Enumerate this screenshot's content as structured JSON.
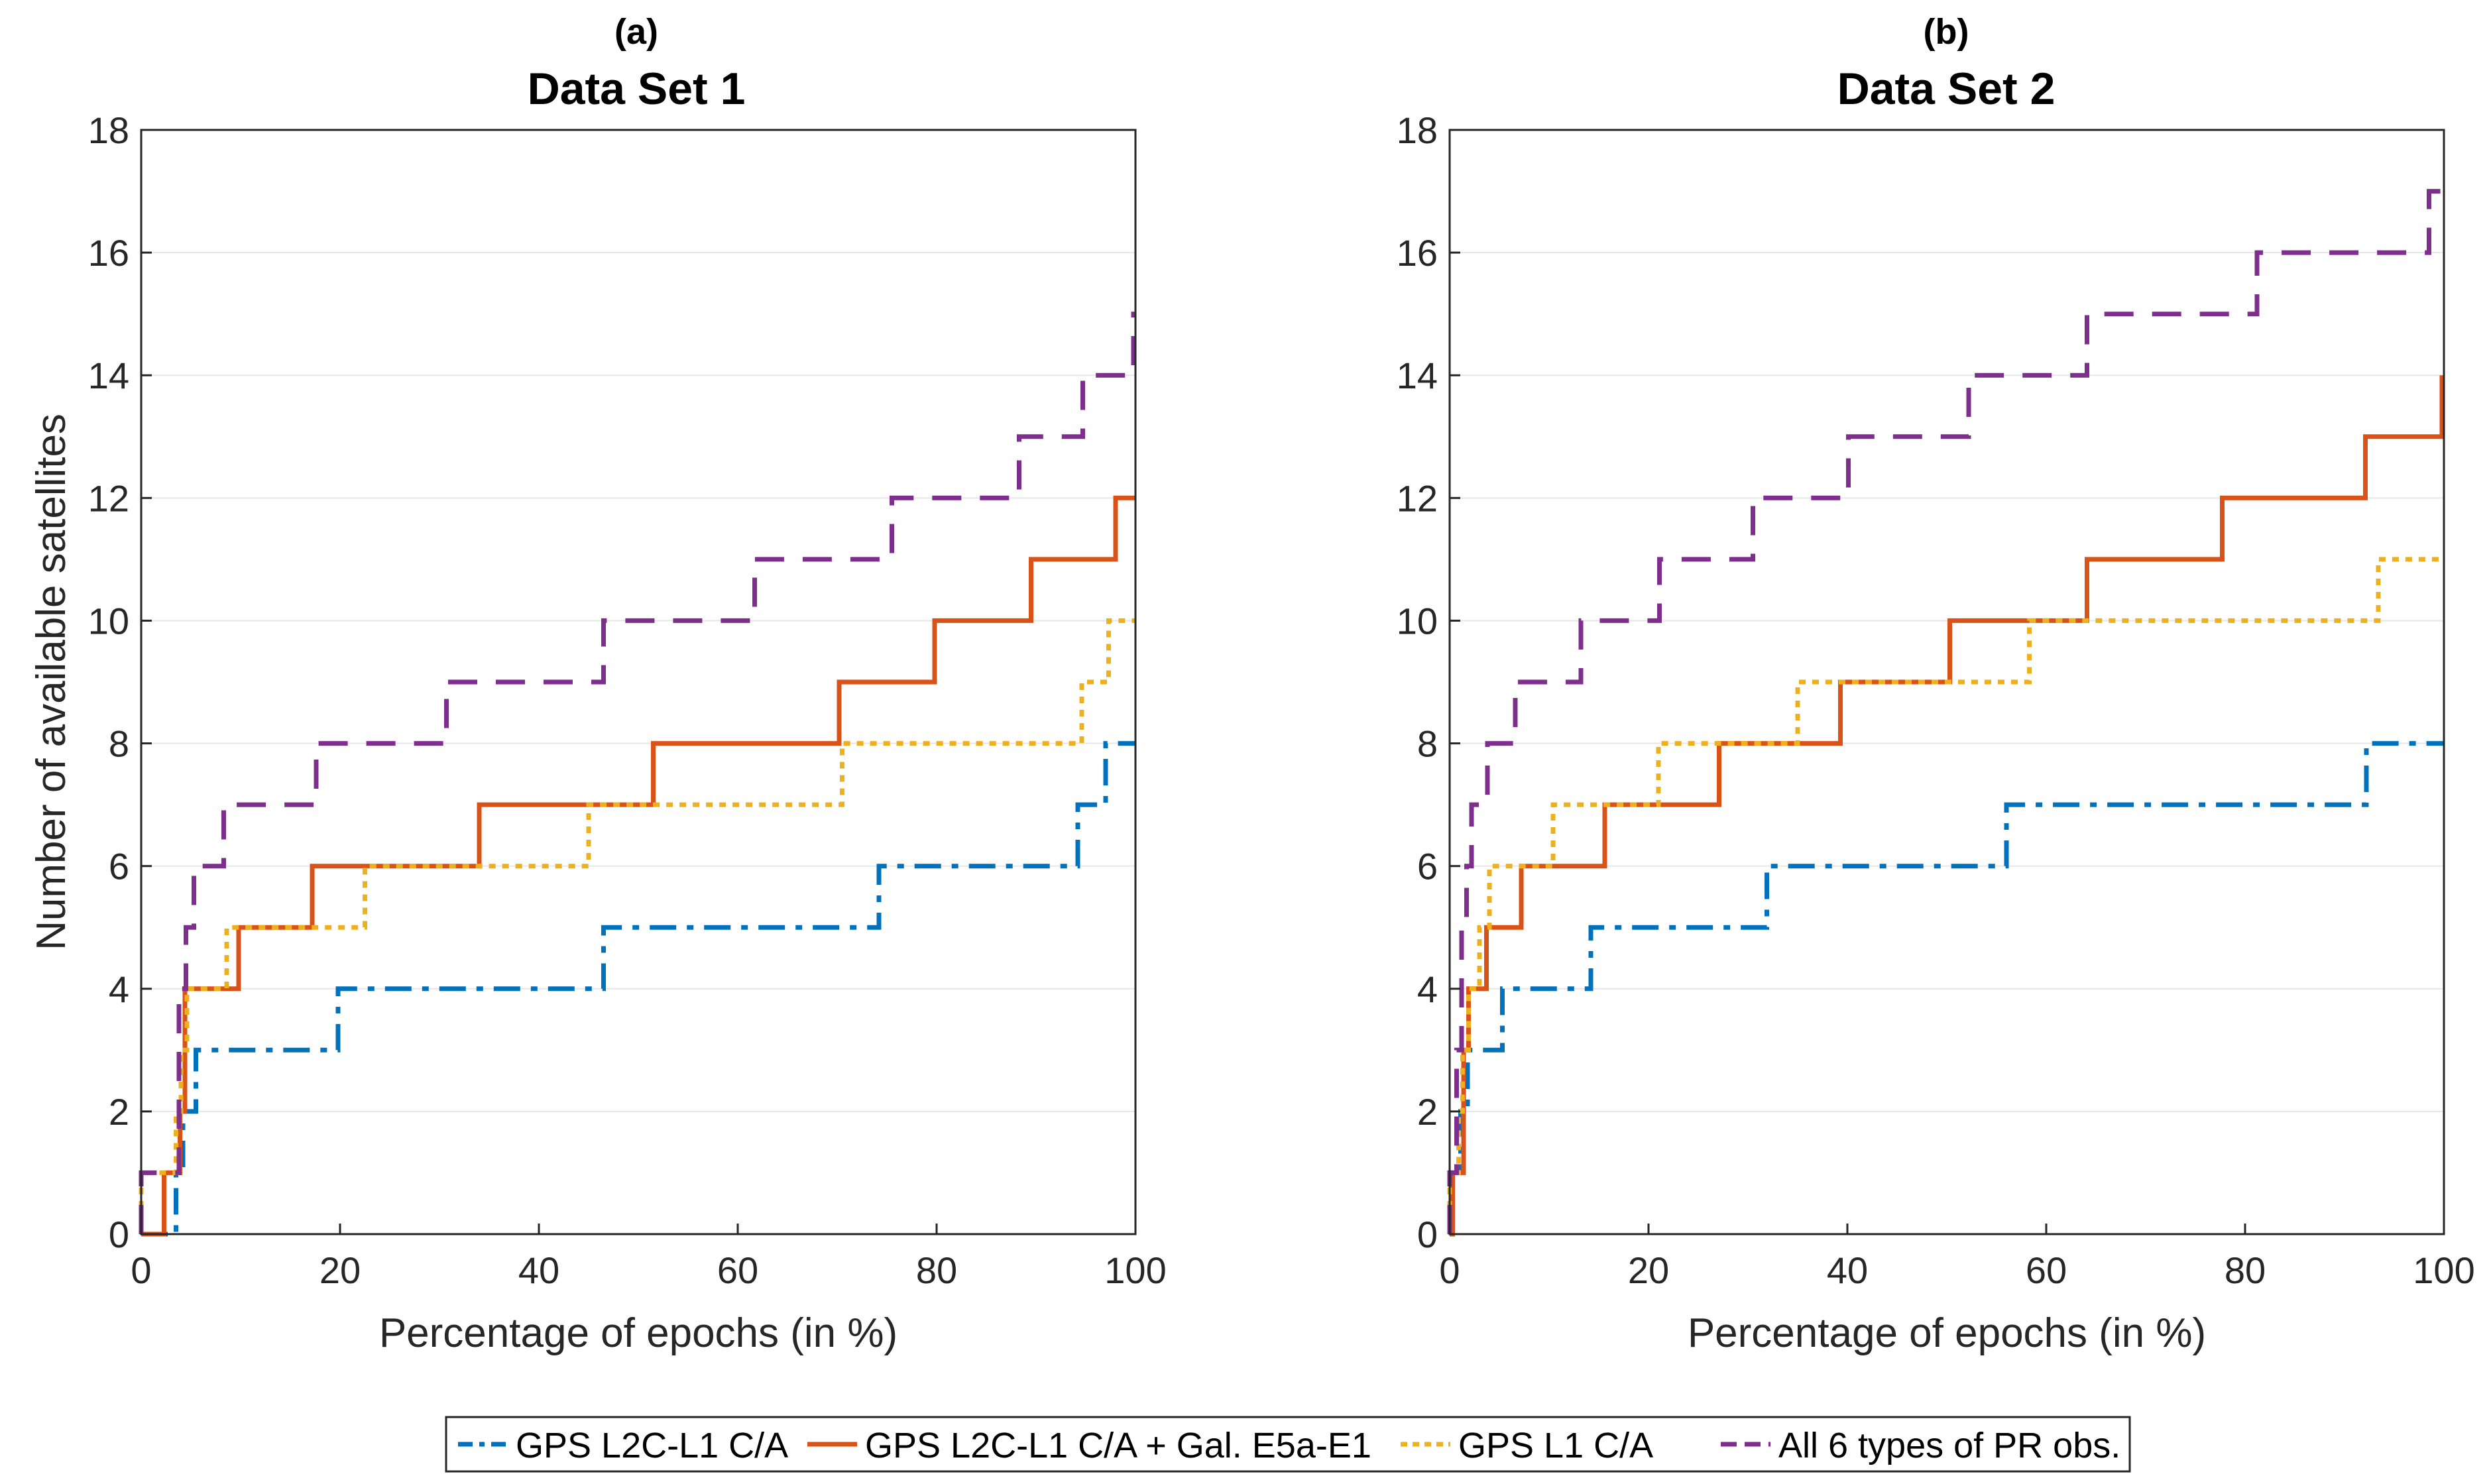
{
  "figure": {
    "ylabel": "Number of available satellites",
    "legend": {
      "placement": "bottom-center",
      "entries": [
        {
          "label": "GPS L2C-L1 C/A",
          "color": "#0072BD",
          "style": "dashdot"
        },
        {
          "label": "GPS L2C-L1 C/A + Gal. E5a-E1",
          "color": "#D95319",
          "style": "solid"
        },
        {
          "label": "GPS L1 C/A",
          "color": "#EDB120",
          "style": "dotted"
        },
        {
          "label": "All 6 types of PR obs.",
          "color": "#7E2F8E",
          "style": "dashed"
        }
      ]
    }
  },
  "chart_data": [
    {
      "type": "line",
      "panel_label": "(a)",
      "title": "Data Set 1",
      "xlabel": "Percentage of epochs (in %)",
      "ylabel": "Number of available satellites",
      "xlim": [
        0,
        100
      ],
      "ylim": [
        0,
        18
      ],
      "xticks": [
        0,
        20,
        40,
        60,
        80,
        100
      ],
      "yticks": [
        0,
        2,
        4,
        6,
        8,
        10,
        12,
        14,
        16,
        18
      ],
      "grid": "horizontal",
      "series": [
        {
          "name": "GPS L2C-L1 C/A",
          "color": "#0072BD",
          "style": "dashdot",
          "x": [
            0,
            3.5,
            3.5,
            4.2,
            4.2,
            5.5,
            5.5,
            19.8,
            19.8,
            46.5,
            46.5,
            74.2,
            74.2,
            94.2,
            94.2,
            97,
            97,
            100
          ],
          "y": [
            0,
            0,
            1,
            1,
            2,
            2,
            3,
            3,
            4,
            4,
            5,
            5,
            6,
            6,
            7,
            7,
            8,
            8
          ]
        },
        {
          "name": "GPS L2C-L1 C/A + Gal. E5a-E1",
          "color": "#D95319",
          "style": "solid",
          "x": [
            0,
            2.3,
            2.3,
            3.9,
            3.9,
            4.4,
            4.4,
            9.8,
            9.8,
            17.2,
            17.2,
            34,
            34,
            51.5,
            51.5,
            70.2,
            70.2,
            79.8,
            79.8,
            89.5,
            89.5,
            98,
            98,
            100
          ],
          "y": [
            0,
            0,
            1,
            1,
            2,
            2,
            4,
            4,
            5,
            5,
            6,
            6,
            7,
            7,
            8,
            8,
            9,
            9,
            10,
            10,
            11,
            11,
            12,
            12
          ]
        },
        {
          "name": "GPS L1 C/A",
          "color": "#EDB120",
          "style": "dotted",
          "x": [
            0,
            0,
            3.5,
            3.5,
            4,
            4,
            4.6,
            4.6,
            8.6,
            8.6,
            22.5,
            22.5,
            45,
            45,
            70.5,
            70.5,
            94.6,
            94.6,
            97.3,
            97.3,
            100
          ],
          "y": [
            0,
            1,
            1,
            2,
            2,
            3,
            3,
            4,
            4,
            5,
            5,
            6,
            6,
            7,
            7,
            8,
            8,
            9,
            9,
            10,
            10
          ]
        },
        {
          "name": "All 6 types of PR obs.",
          "color": "#7E2F8E",
          "style": "dashed",
          "x": [
            0,
            0,
            3.8,
            3.8,
            4.5,
            4.5,
            5.3,
            5.3,
            8.3,
            8.3,
            17.6,
            17.6,
            30.7,
            30.7,
            46.5,
            46.5,
            61.7,
            61.7,
            75.5,
            75.5,
            88.3,
            88.3,
            94.7,
            94.7,
            99.8,
            99.8,
            100
          ],
          "y": [
            0,
            1,
            1,
            4,
            4,
            5,
            5,
            6,
            6,
            7,
            7,
            8,
            8,
            9,
            9,
            10,
            10,
            11,
            11,
            12,
            12,
            13,
            13,
            14,
            14,
            15,
            15
          ]
        }
      ]
    },
    {
      "type": "line",
      "panel_label": "(b)",
      "title": "Data Set 2",
      "xlabel": "Percentage of epochs (in %)",
      "ylabel": "",
      "xlim": [
        0,
        100
      ],
      "ylim": [
        0,
        18
      ],
      "xticks": [
        0,
        20,
        40,
        60,
        80,
        100
      ],
      "yticks": [
        0,
        2,
        4,
        6,
        8,
        10,
        12,
        14,
        16,
        18
      ],
      "grid": "horizontal",
      "series": [
        {
          "name": "GPS L2C-L1 C/A",
          "color": "#0072BD",
          "style": "dashdot",
          "x": [
            0,
            0.3,
            0.3,
            1.1,
            1.1,
            1.8,
            1.8,
            2.3,
            2.3,
            5.3,
            5.3,
            14.2,
            14.2,
            31.9,
            31.9,
            56,
            56,
            92.2,
            92.2,
            100
          ],
          "y": [
            0,
            0,
            1,
            1,
            2,
            2,
            3,
            3,
            3,
            3,
            4,
            4,
            5,
            5,
            6,
            6,
            7,
            7,
            8,
            8
          ]
        },
        {
          "name": "GPS L2C-L1 C/A + Gal. E5a-E1",
          "color": "#D95319",
          "style": "solid",
          "x": [
            0,
            0.3,
            0.3,
            1.4,
            1.4,
            1.9,
            1.9,
            3.7,
            3.7,
            7.2,
            7.2,
            15.6,
            15.6,
            27.1,
            27.1,
            39.3,
            39.3,
            50.3,
            50.3,
            64.1,
            64.1,
            77.7,
            77.7,
            92.1,
            92.1,
            99.8,
            99.8
          ],
          "y": [
            0,
            0,
            1,
            1,
            3,
            3,
            4,
            4,
            5,
            5,
            6,
            6,
            7,
            7,
            8,
            8,
            9,
            9,
            10,
            10,
            11,
            11,
            12,
            12,
            13,
            13,
            14
          ]
        },
        {
          "name": "GPS L1 C/A",
          "color": "#EDB120",
          "style": "dotted",
          "x": [
            0,
            0,
            0.9,
            0.9,
            1.3,
            1.3,
            1.9,
            1.9,
            3,
            3,
            4,
            4,
            10.4,
            10.4,
            21,
            21,
            35,
            35,
            58.3,
            58.3,
            93.4,
            93.4,
            100
          ],
          "y": [
            0,
            1,
            1,
            2,
            2,
            3,
            3,
            4,
            4,
            5,
            5,
            6,
            6,
            7,
            7,
            8,
            8,
            9,
            9,
            10,
            10,
            11,
            11
          ]
        },
        {
          "name": "All 6 types of PR obs.",
          "color": "#7E2F8E",
          "style": "dashed",
          "x": [
            0,
            0,
            0.7,
            0.7,
            1.2,
            1.2,
            1.7,
            1.7,
            2.2,
            2.2,
            3.8,
            3.8,
            6.6,
            6.6,
            13.2,
            13.2,
            21.1,
            21.1,
            30.5,
            30.5,
            40.1,
            40.1,
            52.2,
            52.2,
            64.1,
            64.1,
            81.2,
            81.2,
            98.5,
            98.5,
            100
          ],
          "y": [
            0,
            1,
            1,
            3,
            3,
            5,
            5,
            6,
            6,
            7,
            7,
            8,
            8,
            9,
            9,
            10,
            10,
            11,
            11,
            12,
            12,
            13,
            13,
            14,
            14,
            15,
            15,
            16,
            16,
            17,
            17
          ]
        }
      ]
    }
  ]
}
